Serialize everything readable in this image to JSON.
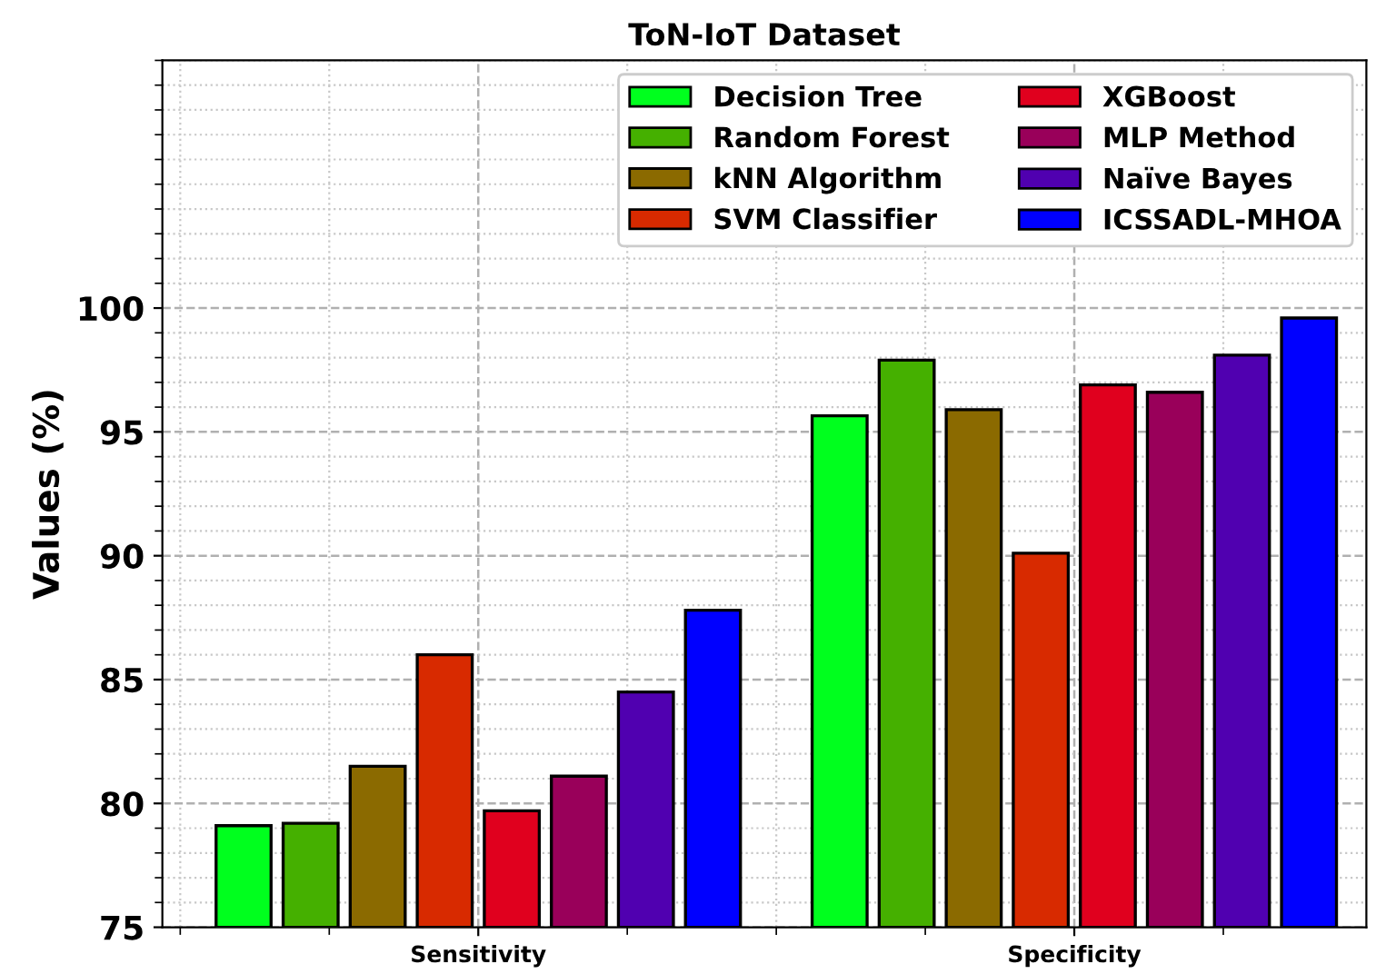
{
  "chart_data": {
    "type": "bar",
    "title": "ToN-IoT Dataset",
    "ylabel": "Values (%)",
    "categories": [
      "Sensitivity",
      "Specificity"
    ],
    "series": [
      {
        "name": "Decision Tree",
        "color": "#00ff1e",
        "values": [
          79.1,
          95.65
        ]
      },
      {
        "name": "Random Forest",
        "color": "#45b000",
        "values": [
          79.2,
          97.9
        ]
      },
      {
        "name": "kNN Algorithm",
        "color": "#8b6a00",
        "values": [
          81.5,
          95.9
        ]
      },
      {
        "name": "SVM Classifier",
        "color": "#d82a00",
        "values": [
          86.0,
          90.1
        ]
      },
      {
        "name": "XGBoost",
        "color": "#e0001e",
        "values": [
          79.7,
          96.9
        ]
      },
      {
        "name": "MLP Method",
        "color": "#99005a",
        "values": [
          81.1,
          96.6
        ]
      },
      {
        "name": "Naïve Bayes",
        "color": "#5000b0",
        "values": [
          84.5,
          98.1
        ]
      },
      {
        "name": "ICSSADL-MHOA",
        "color": "#0000ff",
        "values": [
          87.8,
          99.6
        ]
      }
    ],
    "ylim": [
      75,
      110
    ],
    "yticks": [
      75,
      80,
      85,
      90,
      95,
      100
    ],
    "grid": true,
    "legend": "top right"
  }
}
